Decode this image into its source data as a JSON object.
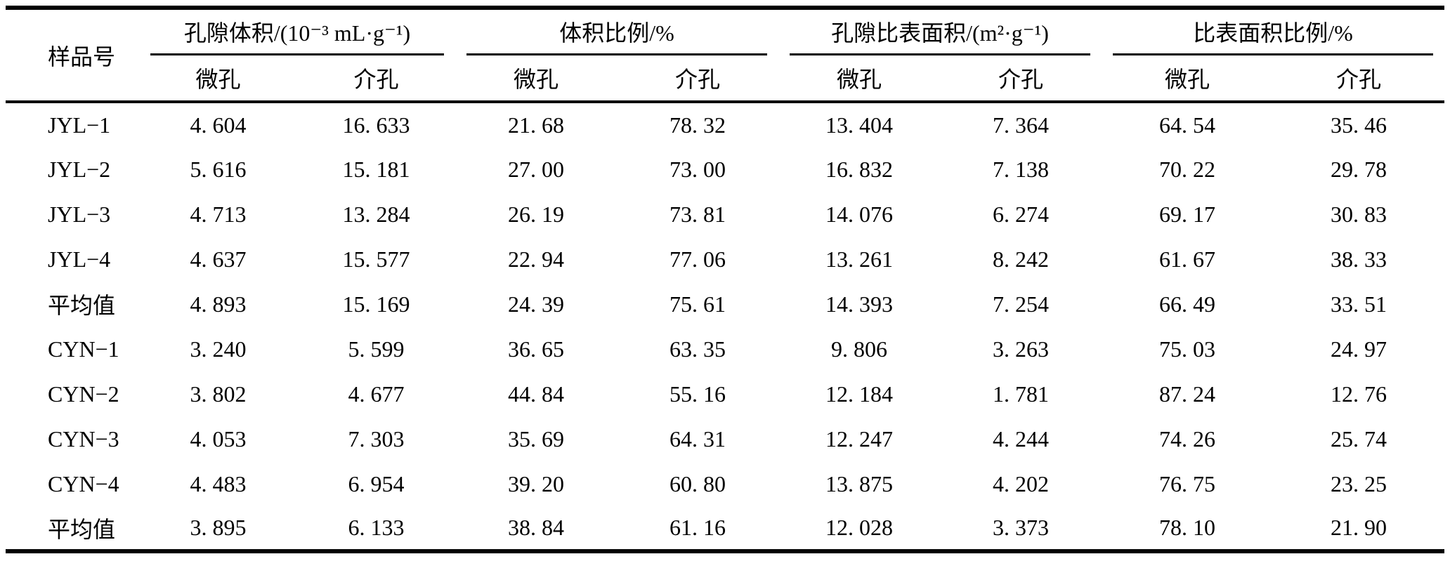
{
  "table": {
    "sample_header": "样品号",
    "groups": [
      {
        "label": "孔隙体积/(10⁻³ mL·g⁻¹)",
        "sub": [
          "微孔",
          "介孔"
        ]
      },
      {
        "label": "体积比例/%",
        "sub": [
          "微孔",
          "介孔"
        ]
      },
      {
        "label": "孔隙比表面积/(m²·g⁻¹)",
        "sub": [
          "微孔",
          "介孔"
        ]
      },
      {
        "label": "比表面积比例/%",
        "sub": [
          "微孔",
          "介孔"
        ]
      }
    ],
    "rows": [
      {
        "sample": "JYL−1",
        "values": [
          "4. 604",
          "16. 633",
          "21. 68",
          "78. 32",
          "13. 404",
          "7. 364",
          "64. 54",
          "35. 46"
        ]
      },
      {
        "sample": "JYL−2",
        "values": [
          "5. 616",
          "15. 181",
          "27. 00",
          "73. 00",
          "16. 832",
          "7. 138",
          "70. 22",
          "29. 78"
        ]
      },
      {
        "sample": "JYL−3",
        "values": [
          "4. 713",
          "13. 284",
          "26. 19",
          "73. 81",
          "14. 076",
          "6. 274",
          "69. 17",
          "30. 83"
        ]
      },
      {
        "sample": "JYL−4",
        "values": [
          "4. 637",
          "15. 577",
          "22. 94",
          "77. 06",
          "13. 261",
          "8. 242",
          "61. 67",
          "38. 33"
        ]
      },
      {
        "sample": "平均值",
        "values": [
          "4. 893",
          "15. 169",
          "24. 39",
          "75. 61",
          "14. 393",
          "7. 254",
          "66. 49",
          "33. 51"
        ]
      },
      {
        "sample": "CYN−1",
        "values": [
          "3. 240",
          "5. 599",
          "36. 65",
          "63. 35",
          "9. 806",
          "3. 263",
          "75. 03",
          "24. 97"
        ]
      },
      {
        "sample": "CYN−2",
        "values": [
          "3. 802",
          "4. 677",
          "44. 84",
          "55. 16",
          "12. 184",
          "1. 781",
          "87. 24",
          "12. 76"
        ]
      },
      {
        "sample": "CYN−3",
        "values": [
          "4. 053",
          "7. 303",
          "35. 69",
          "64. 31",
          "12. 247",
          "4. 244",
          "74. 26",
          "25. 74"
        ]
      },
      {
        "sample": "CYN−4",
        "values": [
          "4. 483",
          "6. 954",
          "39. 20",
          "60. 80",
          "13. 875",
          "4. 202",
          "76. 75",
          "23. 25"
        ]
      },
      {
        "sample": "平均值",
        "values": [
          "3. 895",
          "6. 133",
          "38. 84",
          "61. 16",
          "12. 028",
          "3. 373",
          "78. 10",
          "21. 90"
        ]
      }
    ]
  },
  "colors": {
    "text": "#000000",
    "rule": "#000000",
    "background": "#ffffff"
  }
}
